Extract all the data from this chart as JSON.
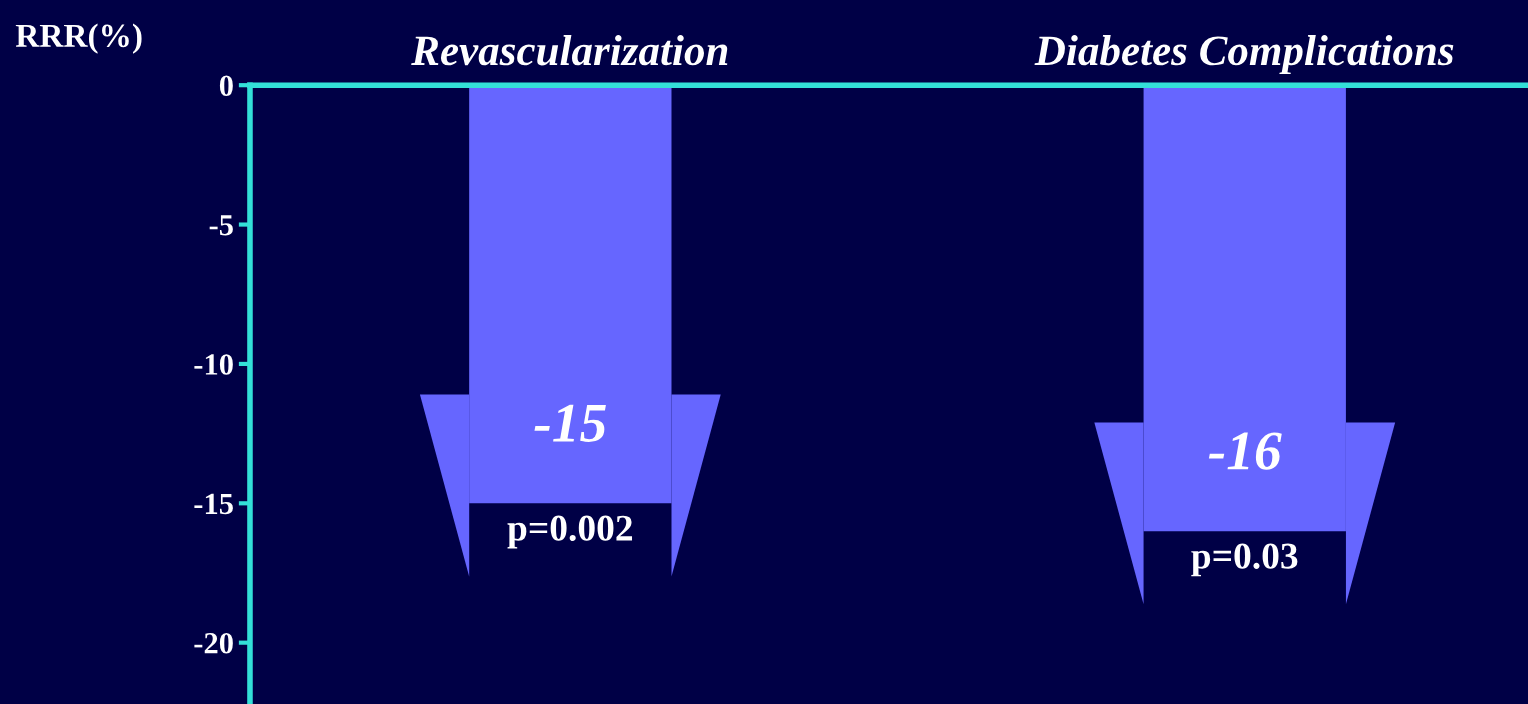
{
  "chart_data": {
    "type": "bar",
    "ylabel": "RRR(%)",
    "categories": [
      "Revascularization",
      "Diabetes Complications"
    ],
    "values": [
      -15,
      -16
    ],
    "color": "#6666ff",
    "ylim": [
      -22.2,
      0
    ],
    "yticks": [
      0,
      -5,
      -10,
      -15,
      -20
    ],
    "data_labels": true,
    "grid": false,
    "annotations": [
      "p=0.002",
      "p=0.03"
    ]
  }
}
